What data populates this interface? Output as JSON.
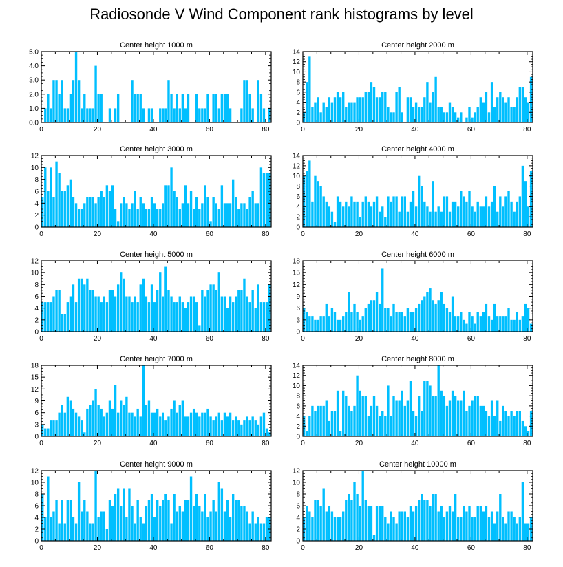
{
  "title": "Radiosonde V Wind Component rank histograms by level",
  "bar_color": "#00bfff",
  "chart_data": [
    {
      "type": "bar",
      "title": "Center height 1000 m",
      "xlim": [
        0,
        82
      ],
      "x_ticks": [
        0,
        20,
        40,
        60,
        80
      ],
      "ylim": [
        0,
        5
      ],
      "y_ticks": [
        "0.0",
        "1.0",
        "2.0",
        "3.0",
        "4.0",
        "5.0"
      ],
      "values": [
        0,
        1,
        2,
        1,
        3,
        3,
        2,
        3,
        1,
        1,
        2,
        3,
        5,
        3,
        1,
        2,
        1,
        1,
        1,
        4,
        2,
        2,
        0,
        0,
        1,
        0,
        1,
        2,
        0,
        0,
        0,
        0,
        3,
        2,
        2,
        2,
        1,
        0,
        1,
        1,
        0,
        0,
        1,
        1,
        1,
        3,
        2,
        1,
        2,
        1,
        2,
        1,
        2,
        0,
        0,
        2,
        1,
        1,
        1,
        2,
        0,
        2,
        2,
        1,
        2,
        2,
        2,
        1,
        0,
        0,
        0,
        1,
        3,
        3,
        2,
        1,
        0,
        3,
        2,
        1,
        0,
        1
      ]
    },
    {
      "type": "bar",
      "title": "Center height 2000 m",
      "xlim": [
        0,
        82
      ],
      "x_ticks": [
        0,
        20,
        40,
        60,
        80
      ],
      "ylim": [
        0,
        14
      ],
      "y_ticks": [
        "0",
        "2",
        "4",
        "6",
        "8",
        "10",
        "12",
        "14"
      ],
      "values": [
        2,
        8,
        13,
        3,
        4,
        5,
        2,
        4,
        3,
        5,
        4,
        5,
        6,
        5,
        6,
        3,
        4,
        4,
        4,
        5,
        5,
        5,
        6,
        6,
        8,
        7,
        5,
        5,
        6,
        6,
        3,
        2,
        2,
        6,
        7,
        2,
        0,
        5,
        5,
        3,
        4,
        3,
        3,
        5,
        8,
        4,
        6,
        9,
        3,
        3,
        2,
        2,
        4,
        3,
        2,
        1,
        2,
        0,
        1,
        3,
        1,
        2,
        3,
        5,
        4,
        6,
        2,
        8,
        3,
        5,
        6,
        5,
        4,
        5,
        3,
        3,
        5,
        7,
        7,
        5,
        4,
        9
      ]
    },
    {
      "type": "bar",
      "title": "Center height 3000 m",
      "xlim": [
        0,
        82
      ],
      "x_ticks": [
        0,
        20,
        40,
        60,
        80
      ],
      "ylim": [
        0,
        12
      ],
      "y_ticks": [
        "0",
        "2",
        "4",
        "6",
        "8",
        "10",
        "12"
      ],
      "values": [
        5,
        10,
        6,
        10,
        5,
        11,
        9,
        6,
        6,
        7,
        8,
        5,
        4,
        3,
        3,
        4,
        5,
        5,
        5,
        4,
        5,
        6,
        5,
        7,
        6,
        7,
        3,
        1,
        4,
        5,
        4,
        3,
        4,
        6,
        3,
        5,
        4,
        3,
        3,
        5,
        4,
        3,
        3,
        4,
        7,
        7,
        10,
        6,
        5,
        3,
        4,
        7,
        4,
        6,
        3,
        5,
        3,
        4,
        7,
        5,
        1,
        5,
        4,
        3,
        7,
        4,
        4,
        4,
        8,
        5,
        3,
        4,
        4,
        3,
        5,
        6,
        4,
        4,
        10,
        9,
        9,
        9
      ]
    },
    {
      "type": "bar",
      "title": "Center height 4000 m",
      "xlim": [
        0,
        82
      ],
      "x_ticks": [
        0,
        20,
        40,
        60,
        80
      ],
      "ylim": [
        0,
        14
      ],
      "y_ticks": [
        "0",
        "2",
        "4",
        "6",
        "8",
        "10",
        "12",
        "14"
      ],
      "values": [
        10,
        11,
        13,
        5,
        10,
        9,
        8,
        6,
        5,
        4,
        3,
        1,
        6,
        5,
        4,
        5,
        4,
        6,
        5,
        5,
        2,
        5,
        6,
        5,
        4,
        5,
        6,
        3,
        4,
        2,
        6,
        5,
        6,
        6,
        3,
        6,
        6,
        3,
        5,
        7,
        4,
        10,
        8,
        5,
        4,
        3,
        9,
        3,
        4,
        3,
        6,
        6,
        3,
        5,
        5,
        4,
        7,
        6,
        5,
        7,
        4,
        3,
        5,
        4,
        4,
        6,
        4,
        5,
        8,
        3,
        6,
        4,
        6,
        7,
        5,
        3,
        5,
        6,
        12,
        9,
        4,
        11
      ]
    },
    {
      "type": "bar",
      "title": "Center height 5000 m",
      "xlim": [
        0,
        82
      ],
      "x_ticks": [
        0,
        20,
        40,
        60,
        80
      ],
      "ylim": [
        0,
        12
      ],
      "y_ticks": [
        "0",
        "2",
        "4",
        "6",
        "8",
        "10",
        "12"
      ],
      "values": [
        5,
        5,
        5,
        5,
        6,
        7,
        7,
        3,
        3,
        5,
        6,
        8,
        5,
        9,
        9,
        8,
        9,
        7,
        7,
        6,
        6,
        5,
        6,
        5,
        7,
        7,
        6,
        8,
        10,
        9,
        6,
        6,
        5,
        6,
        5,
        8,
        9,
        6,
        5,
        8,
        5,
        7,
        10,
        6,
        11,
        7,
        6,
        5,
        5,
        6,
        5,
        4,
        5,
        6,
        6,
        5,
        1,
        7,
        6,
        7,
        8,
        8,
        7,
        10,
        6,
        6,
        4,
        6,
        5,
        6,
        7,
        7,
        9,
        6,
        5,
        7,
        4,
        8,
        5,
        5,
        5,
        8
      ]
    },
    {
      "type": "bar",
      "title": "Center height 6000 m",
      "xlim": [
        0,
        82
      ],
      "x_ticks": [
        0,
        20,
        40,
        60,
        80
      ],
      "ylim": [
        0,
        18
      ],
      "y_ticks": [
        "0",
        "3",
        "6",
        "9",
        "12",
        "15",
        "18"
      ],
      "values": [
        6,
        5,
        4,
        4,
        3,
        3,
        4,
        4,
        7,
        4,
        6,
        5,
        3,
        3,
        4,
        5,
        10,
        5,
        7,
        5,
        3,
        4,
        6,
        7,
        8,
        8,
        10,
        7,
        16,
        6,
        6,
        4,
        7,
        5,
        5,
        5,
        4,
        6,
        5,
        5,
        6,
        7,
        8,
        9,
        10,
        11,
        8,
        7,
        8,
        10,
        7,
        6,
        5,
        9,
        4,
        4,
        5,
        3,
        2,
        5,
        4,
        2,
        5,
        4,
        5,
        7,
        4,
        3,
        7,
        4,
        4,
        4,
        4,
        6,
        3,
        3,
        5,
        3,
        4,
        7,
        6,
        2
      ]
    },
    {
      "type": "bar",
      "title": "Center height 7000 m",
      "xlim": [
        0,
        82
      ],
      "x_ticks": [
        0,
        20,
        40,
        60,
        80
      ],
      "ylim": [
        0,
        18
      ],
      "y_ticks": [
        "0",
        "3",
        "6",
        "9",
        "12",
        "15",
        "18"
      ],
      "values": [
        3,
        2,
        2,
        4,
        4,
        4,
        6,
        8,
        6,
        10,
        9,
        7,
        6,
        5,
        4,
        1,
        7,
        8,
        9,
        12,
        8,
        7,
        5,
        6,
        9,
        7,
        13,
        6,
        9,
        8,
        10,
        6,
        6,
        5,
        7,
        5,
        18,
        8,
        9,
        6,
        6,
        7,
        5,
        6,
        4,
        5,
        7,
        9,
        6,
        8,
        9,
        5,
        5,
        6,
        7,
        6,
        5,
        6,
        6,
        7,
        5,
        4,
        5,
        6,
        4,
        6,
        5,
        6,
        4,
        5,
        4,
        3,
        4,
        5,
        4,
        5,
        4,
        3,
        5,
        6,
        2,
        1
      ]
    },
    {
      "type": "bar",
      "title": "Center height 8000 m",
      "xlim": [
        0,
        82
      ],
      "x_ticks": [
        0,
        20,
        40,
        60,
        80
      ],
      "ylim": [
        0,
        14
      ],
      "y_ticks": [
        "0",
        "2",
        "4",
        "6",
        "8",
        "10",
        "12",
        "14"
      ],
      "values": [
        4,
        1,
        4,
        6,
        5,
        6,
        6,
        6,
        7,
        3,
        5,
        5,
        9,
        1,
        9,
        8,
        6,
        5,
        6,
        12,
        9,
        8,
        8,
        4,
        6,
        8,
        6,
        4,
        5,
        4,
        10,
        4,
        8,
        7,
        7,
        9,
        6,
        7,
        11,
        5,
        4,
        8,
        5,
        11,
        11,
        10,
        8,
        8,
        14,
        9,
        8,
        6,
        7,
        9,
        8,
        7,
        7,
        9,
        5,
        6,
        7,
        8,
        8,
        6,
        6,
        5,
        4,
        7,
        4,
        7,
        3,
        6,
        5,
        4,
        5,
        4,
        5,
        5,
        3,
        2,
        1,
        5
      ]
    },
    {
      "type": "bar",
      "title": "Center height 9000 m",
      "xlim": [
        0,
        82
      ],
      "x_ticks": [
        0,
        20,
        40,
        60,
        80
      ],
      "ylim": [
        0,
        12
      ],
      "y_ticks": [
        "0",
        "2",
        "4",
        "6",
        "8",
        "10",
        "12"
      ],
      "values": [
        8,
        4,
        11,
        4,
        5,
        7,
        3,
        7,
        3,
        7,
        7,
        4,
        3,
        10,
        5,
        7,
        5,
        3,
        3,
        12,
        4,
        5,
        5,
        2,
        7,
        6,
        8,
        9,
        6,
        9,
        4,
        9,
        6,
        3,
        7,
        4,
        3,
        6,
        7,
        8,
        4,
        7,
        6,
        7,
        8,
        7,
        3,
        8,
        5,
        6,
        5,
        7,
        7,
        11,
        6,
        8,
        6,
        5,
        8,
        4,
        5,
        7,
        5,
        10,
        9,
        5,
        7,
        4,
        8,
        7,
        7,
        6,
        6,
        5,
        3,
        5,
        3,
        4,
        3,
        3,
        4,
        4
      ]
    },
    {
      "type": "bar",
      "title": "Center height 10000 m",
      "xlim": [
        0,
        82
      ],
      "x_ticks": [
        0,
        20,
        40,
        60,
        80
      ],
      "ylim": [
        0,
        12
      ],
      "y_ticks": [
        "0",
        "2",
        "4",
        "6",
        "8",
        "10",
        "12"
      ],
      "values": [
        4,
        6,
        5,
        4,
        7,
        7,
        6,
        9,
        5,
        6,
        5,
        4,
        4,
        4,
        5,
        7,
        8,
        7,
        10,
        8,
        6,
        12,
        7,
        6,
        6,
        1,
        6,
        6,
        6,
        4,
        3,
        5,
        4,
        3,
        5,
        5,
        5,
        4,
        6,
        5,
        6,
        7,
        8,
        7,
        7,
        6,
        8,
        8,
        5,
        6,
        4,
        5,
        6,
        5,
        8,
        4,
        4,
        6,
        5,
        6,
        4,
        4,
        6,
        6,
        5,
        6,
        4,
        5,
        3,
        5,
        8,
        4,
        3,
        5,
        5,
        4,
        3,
        4,
        10,
        3,
        3,
        4
      ]
    }
  ]
}
